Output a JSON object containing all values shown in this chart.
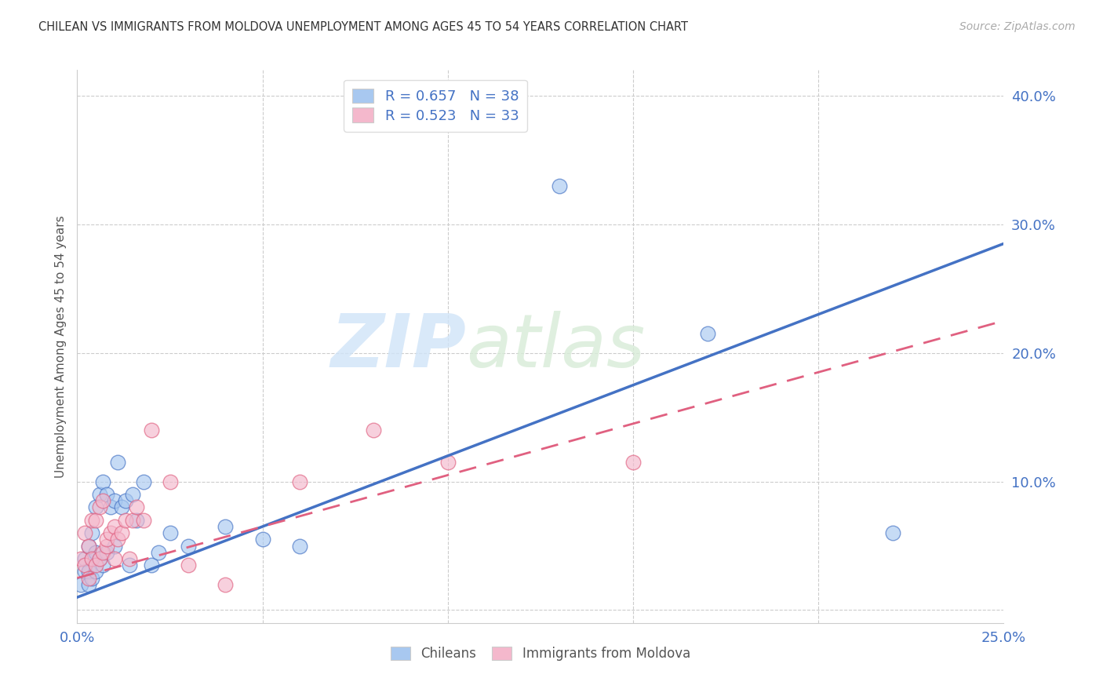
{
  "title": "CHILEAN VS IMMIGRANTS FROM MOLDOVA UNEMPLOYMENT AMONG AGES 45 TO 54 YEARS CORRELATION CHART",
  "source": "Source: ZipAtlas.com",
  "ylabel": "Unemployment Among Ages 45 to 54 years",
  "xlim": [
    0.0,
    0.25
  ],
  "ylim": [
    -0.01,
    0.42
  ],
  "xticks": [
    0.0,
    0.05,
    0.1,
    0.15,
    0.2,
    0.25
  ],
  "yticks": [
    0.0,
    0.1,
    0.2,
    0.3,
    0.4
  ],
  "ytick_labels": [
    "",
    "10.0%",
    "20.0%",
    "30.0%",
    "40.0%"
  ],
  "xtick_labels": [
    "0.0%",
    "",
    "",
    "",
    "",
    "25.0%"
  ],
  "blue_R": "0.657",
  "blue_N": "38",
  "pink_R": "0.523",
  "pink_N": "33",
  "blue_color": "#a8c8f0",
  "pink_color": "#f4b8cc",
  "blue_line_color": "#4472c4",
  "pink_line_color": "#e06080",
  "watermark_zip": "ZIP",
  "watermark_atlas": "atlas",
  "chileans_label": "Chileans",
  "moldova_label": "Immigrants from Moldova",
  "blue_scatter_x": [
    0.001,
    0.002,
    0.002,
    0.003,
    0.003,
    0.003,
    0.004,
    0.004,
    0.004,
    0.005,
    0.005,
    0.005,
    0.006,
    0.006,
    0.007,
    0.007,
    0.008,
    0.008,
    0.009,
    0.01,
    0.01,
    0.011,
    0.012,
    0.013,
    0.014,
    0.015,
    0.016,
    0.018,
    0.02,
    0.022,
    0.025,
    0.03,
    0.04,
    0.05,
    0.06,
    0.13,
    0.17,
    0.22
  ],
  "blue_scatter_y": [
    0.02,
    0.03,
    0.04,
    0.02,
    0.03,
    0.05,
    0.025,
    0.04,
    0.06,
    0.03,
    0.045,
    0.08,
    0.04,
    0.09,
    0.035,
    0.1,
    0.045,
    0.09,
    0.08,
    0.05,
    0.085,
    0.115,
    0.08,
    0.085,
    0.035,
    0.09,
    0.07,
    0.1,
    0.035,
    0.045,
    0.06,
    0.05,
    0.065,
    0.055,
    0.05,
    0.33,
    0.215,
    0.06
  ],
  "pink_scatter_x": [
    0.001,
    0.002,
    0.002,
    0.003,
    0.003,
    0.004,
    0.004,
    0.005,
    0.005,
    0.006,
    0.006,
    0.007,
    0.007,
    0.008,
    0.008,
    0.009,
    0.01,
    0.01,
    0.011,
    0.012,
    0.013,
    0.014,
    0.015,
    0.016,
    0.018,
    0.02,
    0.025,
    0.03,
    0.04,
    0.06,
    0.08,
    0.1,
    0.15
  ],
  "pink_scatter_y": [
    0.04,
    0.035,
    0.06,
    0.025,
    0.05,
    0.04,
    0.07,
    0.035,
    0.07,
    0.04,
    0.08,
    0.045,
    0.085,
    0.05,
    0.055,
    0.06,
    0.04,
    0.065,
    0.055,
    0.06,
    0.07,
    0.04,
    0.07,
    0.08,
    0.07,
    0.14,
    0.1,
    0.035,
    0.02,
    0.1,
    0.14,
    0.115,
    0.115
  ],
  "blue_line_x0": 0.0,
  "blue_line_y0": 0.01,
  "blue_line_x1": 0.25,
  "blue_line_y1": 0.285,
  "pink_line_x0": 0.0,
  "pink_line_y0": 0.025,
  "pink_line_x1": 0.25,
  "pink_line_y1": 0.225
}
